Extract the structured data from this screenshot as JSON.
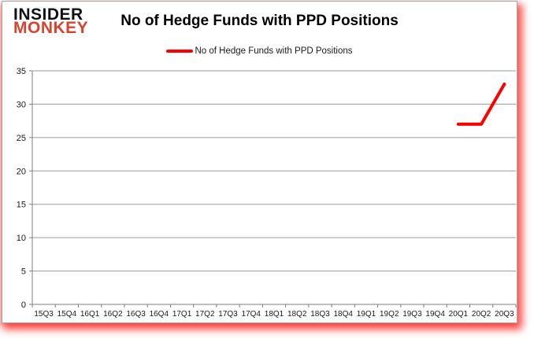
{
  "logo": {
    "line1": "INSIDER",
    "line2": "MONKEY"
  },
  "header": {
    "title": "No of Hedge Funds with PPD Positions"
  },
  "legend": {
    "label": "No of Hedge Funds with PPD Positions",
    "line_color": "#ff0000"
  },
  "colors": {
    "grid": "#9a9a9a",
    "axis": "#7f7f7f",
    "tick_label": "#1a1a1a",
    "title": "#000000",
    "logo_black": "#111111",
    "logo_red": "#d8432f",
    "series_red": "#ff0000",
    "frame_border": "#a3a3a3",
    "shadow_red": "#ff0000"
  },
  "chart_data": {
    "type": "line",
    "title": "No of Hedge Funds with PPD Positions",
    "xlabel": "",
    "ylabel": "",
    "categories": [
      "15Q3",
      "15Q4",
      "16Q1",
      "16Q2",
      "16Q3",
      "16Q4",
      "17Q1",
      "17Q2",
      "17Q3",
      "17Q4",
      "18Q1",
      "18Q2",
      "18Q3",
      "18Q4",
      "19Q1",
      "19Q2",
      "19Q3",
      "19Q4",
      "20Q1",
      "20Q2",
      "20Q3"
    ],
    "series": [
      {
        "name": "No of Hedge Funds with PPD Positions",
        "color": "#ff0000",
        "values": [
          null,
          null,
          null,
          null,
          null,
          null,
          null,
          null,
          null,
          null,
          null,
          null,
          null,
          null,
          null,
          null,
          null,
          null,
          27,
          27,
          33
        ]
      }
    ],
    "ylim": [
      0,
      35
    ],
    "ytick_step": 5,
    "grid": true,
    "legend_position": "top"
  }
}
